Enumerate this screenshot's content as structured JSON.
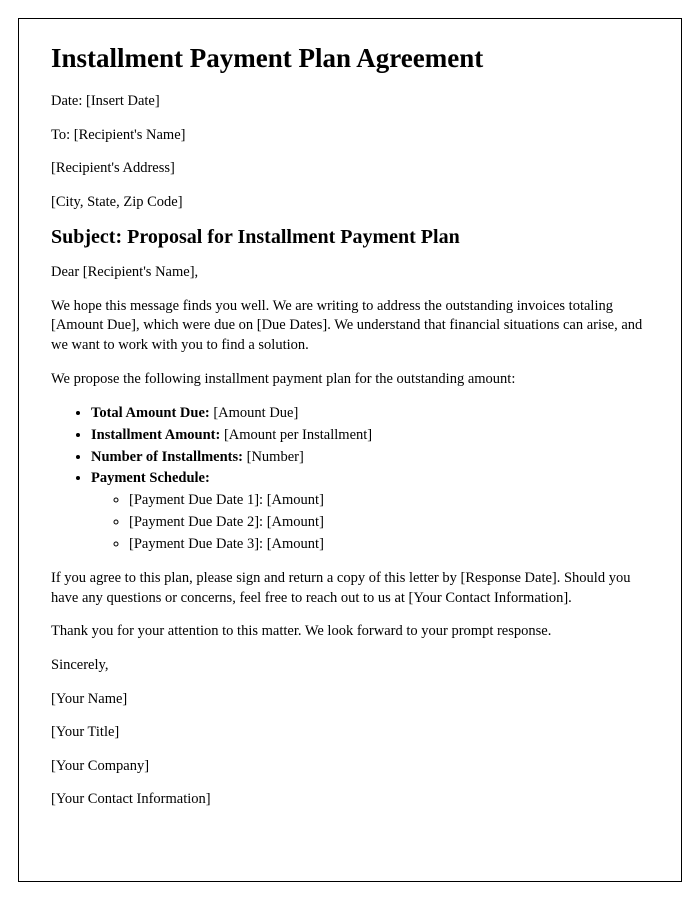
{
  "title": "Installment Payment Plan Agreement",
  "header": {
    "date_line": "Date: [Insert Date]",
    "to_line": "To: [Recipient's Name]",
    "address_line": "[Recipient's Address]",
    "city_line": "[City, State, Zip Code]"
  },
  "subject": "Subject: Proposal for Installment Payment Plan",
  "salutation": "Dear [Recipient's Name],",
  "para1": "We hope this message finds you well. We are writing to address the outstanding invoices totaling [Amount Due], which were due on [Due Dates]. We understand that financial situations can arise, and we want to work with you to find a solution.",
  "para2": "We propose the following installment payment plan for the outstanding amount:",
  "bullets": {
    "total_label": "Total Amount Due: ",
    "total_value": "[Amount Due]",
    "installment_label": "Installment Amount: ",
    "installment_value": "[Amount per Installment]",
    "number_label": "Number of Installments: ",
    "number_value": "[Number]",
    "schedule_label": "Payment Schedule:",
    "schedule_items": {
      "0": "[Payment Due Date 1]: [Amount]",
      "1": "[Payment Due Date 2]: [Amount]",
      "2": "[Payment Due Date 3]: [Amount]"
    }
  },
  "para3": "If you agree to this plan, please sign and return a copy of this letter by [Response Date]. Should you have any questions or concerns, feel free to reach out to us at [Your Contact Information].",
  "para4": "Thank you for your attention to this matter. We look forward to your prompt response.",
  "closing": {
    "sincerely": "Sincerely,",
    "name": "[Your Name]",
    "title": "[Your Title]",
    "company": "[Your Company]",
    "contact": "[Your Contact Information]"
  }
}
